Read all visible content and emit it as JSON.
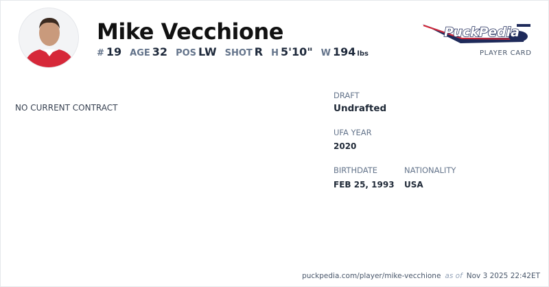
{
  "player": {
    "name": "Mike Vecchione",
    "number_label": "#",
    "number": "19",
    "age_label": "AGE",
    "age": "32",
    "pos_label": "POS",
    "pos": "LW",
    "shot_label": "SHOT",
    "shot": "R",
    "height_label": "H",
    "height": "5'10\"",
    "weight_label": "W",
    "weight": "194",
    "weight_unit": "lbs"
  },
  "brand": {
    "logo_text": "PuckPedia",
    "subtitle": "PLAYER CARD",
    "colors": {
      "navy": "#1e2a5a",
      "red": "#d62839"
    }
  },
  "contract": {
    "status": "NO CURRENT CONTRACT"
  },
  "details": {
    "draft_label": "DRAFT",
    "draft": "Undrafted",
    "ufa_label": "UFA YEAR",
    "ufa": "2020",
    "birth_label": "BIRTHDATE",
    "birth": "FEB 25, 1993",
    "nat_label": "NATIONALITY",
    "nat": "USA"
  },
  "footer": {
    "url": "puckpedia.com/player/mike-vecchione",
    "as_of": "as of",
    "timestamp": "Nov 3 2025 22:42ET"
  }
}
